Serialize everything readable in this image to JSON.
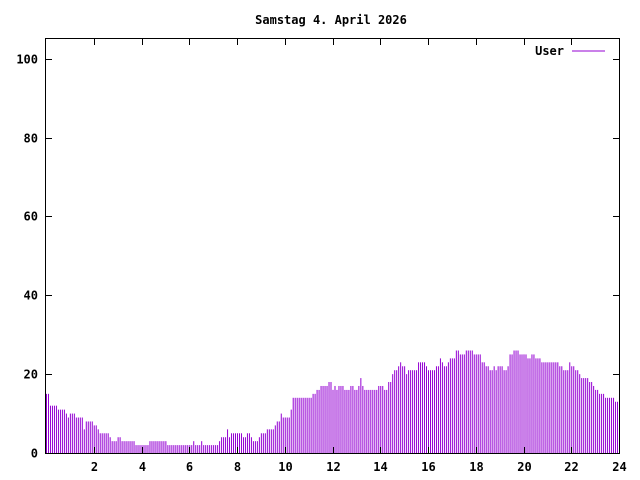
{
  "chart_data": {
    "type": "bar",
    "title": "Samstag 4. April 2026",
    "xlabel": "",
    "ylabel": "",
    "xlim": [
      0,
      24
    ],
    "ylim": [
      0,
      105
    ],
    "x_ticks": [
      2,
      4,
      6,
      8,
      10,
      12,
      14,
      16,
      18,
      20,
      22,
      24
    ],
    "y_ticks": [
      0,
      20,
      40,
      60,
      80,
      100
    ],
    "grid": false,
    "legend_position": "top-right",
    "colors": {
      "series": "#9400d3",
      "axis": "#000000",
      "background": "#ffffff"
    },
    "series": [
      {
        "name": "User",
        "color": "#9400d3",
        "interval_minutes": 5,
        "values": [
          15,
          15,
          12,
          12,
          12,
          12,
          11,
          11,
          11,
          11,
          10,
          9,
          10,
          10,
          10,
          9,
          9,
          9,
          9,
          6,
          8,
          8,
          8,
          8,
          7,
          7,
          6,
          5,
          5,
          5,
          5,
          5,
          4,
          3,
          3,
          3,
          4,
          4,
          3,
          3,
          3,
          3,
          3,
          3,
          3,
          2,
          2,
          2,
          2,
          2,
          2,
          2,
          3,
          3,
          3,
          3,
          3,
          3,
          3,
          3,
          3,
          2,
          2,
          2,
          2,
          2,
          2,
          2,
          2,
          2,
          2,
          2,
          2,
          2,
          3,
          2,
          2,
          2,
          3,
          2,
          2,
          2,
          2,
          2,
          2,
          2,
          2,
          3,
          4,
          4,
          4,
          6,
          4,
          5,
          5,
          5,
          5,
          5,
          5,
          4,
          4,
          5,
          5,
          4,
          3,
          3,
          3,
          4,
          5,
          5,
          5,
          6,
          6,
          6,
          6,
          7,
          8,
          8,
          10,
          9,
          9,
          9,
          9,
          11,
          14,
          14,
          14,
          14,
          14,
          14,
          14,
          14,
          14,
          14,
          15,
          15,
          16,
          16,
          17,
          17,
          17,
          17,
          18,
          18,
          16,
          17,
          16,
          17,
          17,
          17,
          16,
          16,
          16,
          17,
          17,
          16,
          16,
          17,
          19,
          17,
          16,
          16,
          16,
          16,
          16,
          16,
          16,
          17,
          17,
          17,
          16,
          16,
          18,
          18,
          20,
          21,
          21,
          22,
          23,
          22,
          22,
          20,
          21,
          21,
          21,
          21,
          21,
          23,
          23,
          23,
          23,
          22,
          21,
          21,
          21,
          21,
          22,
          22,
          24,
          23,
          22,
          22,
          23,
          24,
          24,
          24,
          26,
          26,
          25,
          25,
          25,
          26,
          26,
          26,
          26,
          25,
          25,
          25,
          25,
          23,
          23,
          22,
          22,
          21,
          21,
          22,
          21,
          22,
          22,
          22,
          21,
          21,
          22,
          25,
          25,
          26,
          26,
          26,
          25,
          25,
          25,
          25,
          24,
          24,
          25,
          25,
          24,
          24,
          24,
          23,
          23,
          23,
          23,
          23,
          23,
          23,
          23,
          23,
          22,
          22,
          21,
          21,
          21,
          23,
          22,
          22,
          21,
          21,
          20,
          19,
          19,
          19,
          19,
          18,
          18,
          17,
          16,
          16,
          15,
          15,
          15,
          14,
          14,
          14,
          14,
          14,
          13,
          13
        ]
      }
    ]
  }
}
